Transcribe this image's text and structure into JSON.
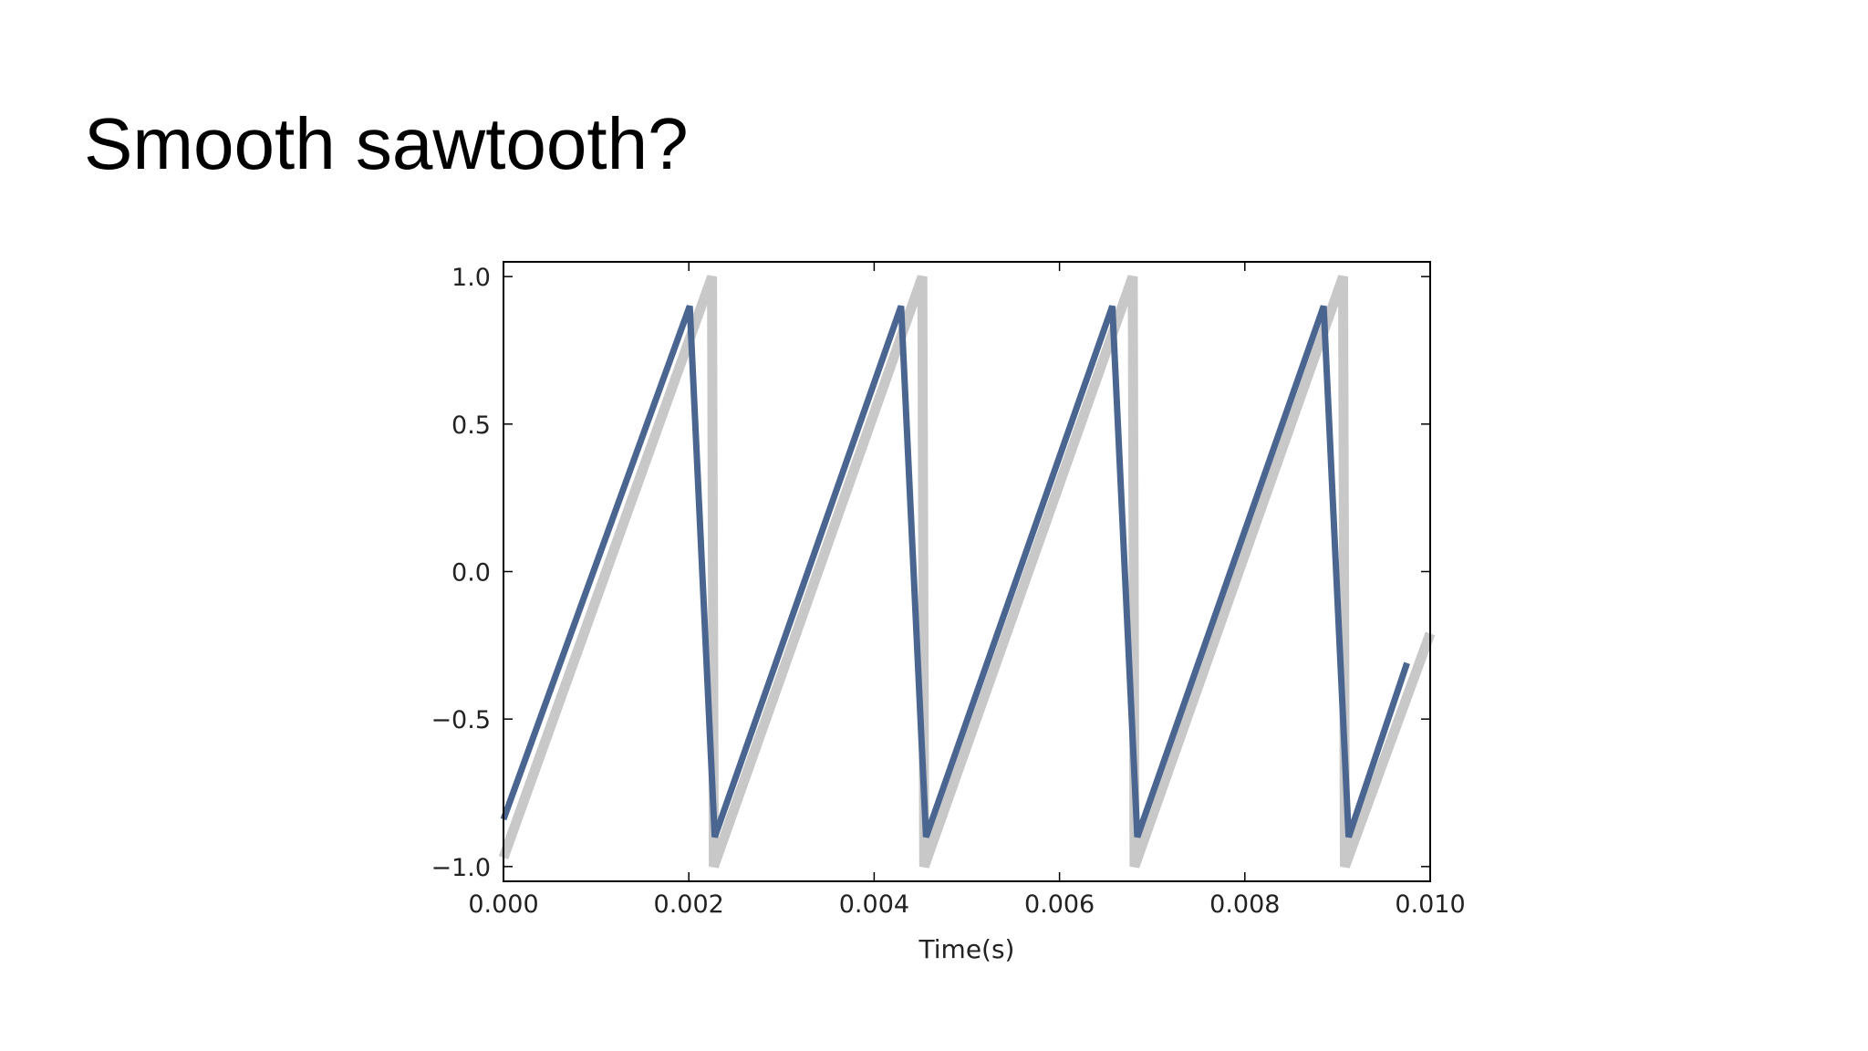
{
  "slide": {
    "title": "Smooth sawtooth?"
  },
  "chart_data": {
    "type": "line",
    "title": "",
    "xlabel": "Time(s)",
    "ylabel": "",
    "xlim": [
      0.0,
      0.01
    ],
    "ylim": [
      -1.05,
      1.05
    ],
    "grid": false,
    "legend": "none",
    "xticks": [
      0.0,
      0.002,
      0.004,
      0.006,
      0.008,
      0.01
    ],
    "xtick_labels": [
      "0.000",
      "0.002",
      "0.004",
      "0.006",
      "0.008",
      "0.010"
    ],
    "yticks": [
      1.0,
      0.5,
      0.0,
      -0.5,
      -1.0
    ],
    "ytick_labels": [
      "1.0",
      "0.5",
      "0.0",
      "−0.5",
      "−1.0"
    ],
    "series": [
      {
        "color": "#c8c8c8",
        "x": [
          0.0,
          0.00225,
          0.00227,
          0.00452,
          0.00454,
          0.00679,
          0.00681,
          0.00906,
          0.00908,
          0.01
        ],
        "y": [
          -0.97,
          1.0,
          -1.0,
          1.0,
          -1.0,
          1.0,
          -1.0,
          1.0,
          -1.0,
          -0.21
        ]
      },
      {
        "color": "#4a6690",
        "x": [
          0.0,
          0.00201,
          0.00228,
          0.00429,
          0.00456,
          0.00657,
          0.00684,
          0.00885,
          0.00912,
          0.00975
        ],
        "y": [
          -0.84,
          0.9,
          -0.9,
          0.9,
          -0.9,
          0.9,
          -0.9,
          0.9,
          -0.9,
          -0.31
        ]
      }
    ]
  }
}
